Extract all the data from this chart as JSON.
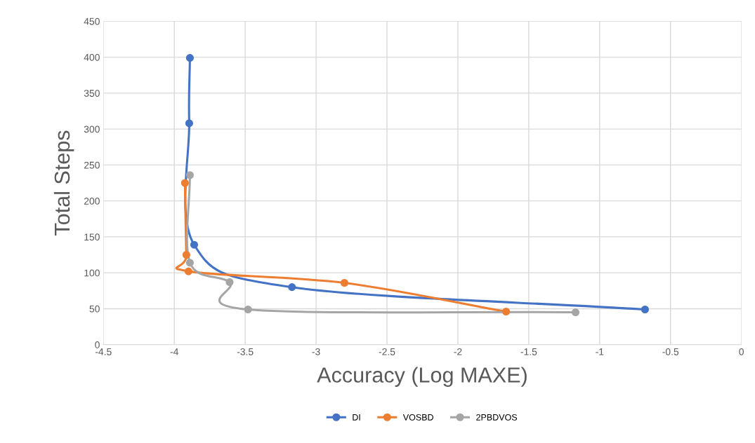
{
  "chart_data": {
    "type": "line",
    "xlabel": "Accuracy (Log MAXE)",
    "ylabel": "Total Steps",
    "xlim": [
      -4.5,
      0
    ],
    "xticks": [
      -4.5,
      -4,
      -3.5,
      -3,
      -2.5,
      -2,
      -1.5,
      -1,
      -0.5,
      0
    ],
    "ylim": [
      0,
      450
    ],
    "yticks": [
      0,
      50,
      100,
      150,
      200,
      250,
      300,
      350,
      400,
      450
    ],
    "grid": true,
    "legend": "bottom",
    "marker": "circle",
    "line_style": "solid",
    "series": [
      {
        "name": "DI",
        "color": "#4472c4",
        "x": [
          -3.89,
          -3.895,
          -3.86,
          -3.17,
          -0.68
        ],
        "values": [
          399,
          308,
          139,
          80,
          49
        ]
      },
      {
        "name": "VOSBD",
        "color": "#ed7d31",
        "x": [
          -3.925,
          -3.915,
          -3.9,
          -2.8,
          -1.66
        ],
        "values": [
          225,
          125,
          102,
          86,
          46
        ]
      },
      {
        "name": "2PBDVOS",
        "color": "#a5a5a5",
        "x": [
          -3.89,
          -3.89,
          -3.61,
          -3.48,
          -1.17
        ],
        "values": [
          236,
          114,
          87,
          49,
          45
        ]
      }
    ]
  }
}
